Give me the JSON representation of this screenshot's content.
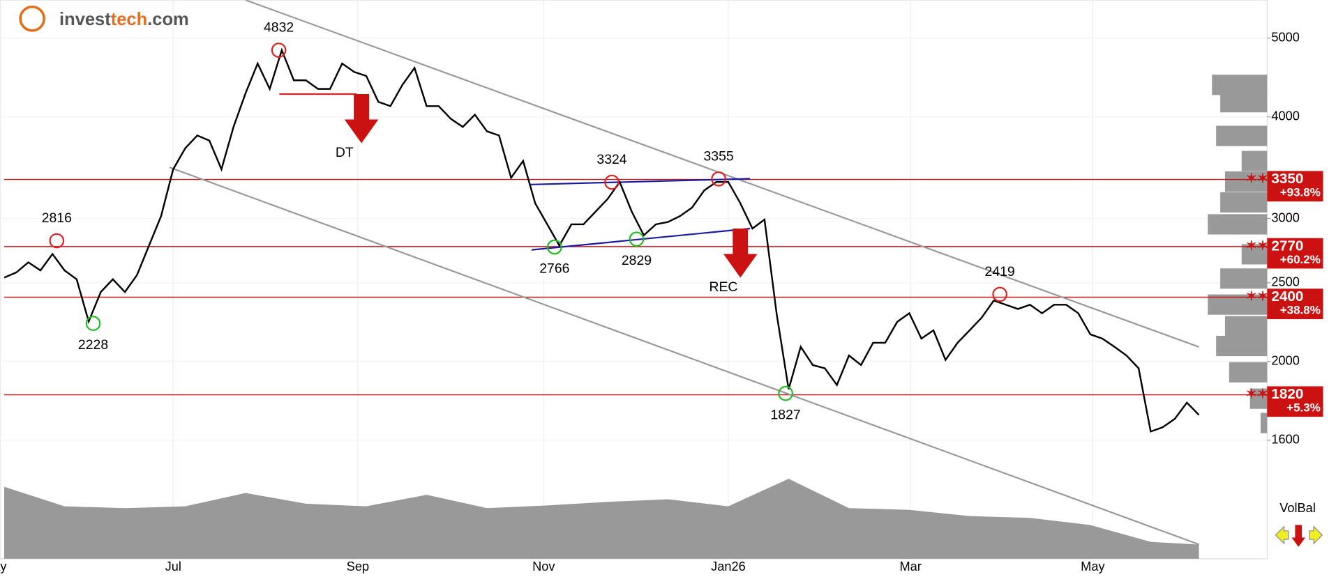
{
  "logo": [
    "invest",
    "tech",
    ".com"
  ],
  "chart_data": {
    "type": "line",
    "log_scale": true,
    "grid": true,
    "ylim": [
      1525,
      5570
    ],
    "yticks": [
      5000,
      4000,
      3000,
      2500,
      2000,
      1600
    ],
    "xlim": [
      -0.35,
      104.65
    ],
    "xticks": [
      {
        "value": -0.8,
        "label": "May"
      },
      {
        "value": 14,
        "label": "Jul"
      },
      {
        "value": 29.3,
        "label": "Sep"
      },
      {
        "value": 44.7,
        "label": "Nov"
      },
      {
        "value": 60,
        "label": "Jan26"
      },
      {
        "value": 75.1,
        "label": "Mar"
      },
      {
        "value": 90.2,
        "label": "May"
      }
    ],
    "series": [
      {
        "color": "#000000",
        "values": [
          2537,
          2574,
          2649,
          2589,
          2712,
          2589,
          2525,
          2240,
          2435,
          2525,
          2435,
          2555,
          2778,
          3020,
          3448,
          3660,
          3795,
          3740,
          3448,
          3888,
          4278,
          4653,
          4330,
          4832,
          4437,
          4437,
          4330,
          4330,
          4653,
          4543,
          4492,
          4174,
          4124,
          4381,
          4596,
          4124,
          4124,
          3979,
          3888,
          4025,
          3840,
          3795,
          3366,
          3531,
          3131,
          2950,
          2778,
          2950,
          2950,
          3058,
          3170,
          3326,
          3058,
          2860,
          2950,
          2970,
          3020,
          3094,
          3247,
          3326,
          3326,
          3131,
          2915,
          2990,
          2293,
          1849,
          2085,
          1980,
          1962,
          1871,
          2034,
          1980,
          2109,
          2109,
          2238,
          2293,
          2134,
          2185,
          2009,
          2109,
          2185,
          2265,
          2377,
          2349,
          2321,
          2349,
          2293,
          2349,
          2349,
          2293,
          2160,
          2134,
          2085,
          2034,
          1962,
          1640,
          1660,
          1700,
          1780,
          1719
        ]
      }
    ],
    "lines": [
      {
        "x": [
          20.0,
          99.0
        ],
        "values": [
          5570,
          2084
        ],
        "color": "#999999"
      },
      {
        "x": [
          13.7,
          99.0
        ],
        "values": [
          3467,
          1191
        ],
        "color": "#999999"
      },
      {
        "x": [
          43.5,
          61.8
        ],
        "values": [
          3302,
          3357
        ],
        "color": "#1a1aa0"
      },
      {
        "x": [
          43.7,
          61.8
        ],
        "values": [
          2744,
          2915
        ],
        "color": "#1a1aa0"
      },
      {
        "x": [
          22.8,
          29.2
        ],
        "values": [
          4267,
          4267
        ],
        "color": "#e02020"
      }
    ],
    "extremes": [
      {
        "x": 4.35,
        "value": 2816,
        "color": "#e02020"
      },
      {
        "x": 7.37,
        "value": 2228,
        "color": "#22bb22"
      },
      {
        "x": 22.75,
        "value": 4832,
        "color": "#e02020"
      },
      {
        "x": 50.35,
        "value": 3324,
        "color": "#e02020"
      },
      {
        "x": 59.2,
        "value": 3355,
        "color": "#e02020"
      },
      {
        "x": 45.6,
        "value": 2766,
        "color": "#22bb22"
      },
      {
        "x": 52.4,
        "value": 2829,
        "color": "#22bb22"
      },
      {
        "x": 64.75,
        "value": 1827,
        "color": "#22bb22"
      },
      {
        "x": 82.5,
        "value": 2419,
        "color": "#e02020"
      }
    ],
    "signals": [
      {
        "label": "DT",
        "x": 29.6,
        "value": 4267
      },
      {
        "label": "REC",
        "x": 61.0,
        "value": 2915
      }
    ],
    "levels": {
      "values": [
        3350,
        2770,
        2400,
        1820
      ],
      "changes": [
        93.8,
        60.2,
        38.8,
        5.3
      ],
      "change_labels": [
        "+93.8%",
        "+60.2%",
        "+38.8%",
        "+5.3%"
      ],
      "color": "#cc1111"
    },
    "volume": {
      "x": [
        0,
        5,
        10,
        15,
        20,
        25,
        30,
        35,
        40,
        45,
        50,
        55,
        60,
        65,
        70,
        75,
        80,
        85,
        90,
        95,
        99
      ],
      "values": [
        81,
        59,
        57,
        59,
        74,
        62,
        59,
        72,
        57,
        60,
        64,
        67,
        59,
        90,
        57,
        55,
        48,
        46,
        38,
        19,
        16
      ],
      "ylim": [
        0,
        100
      ],
      "color": "#999999"
    },
    "volume_profile": {
      "prices": [
        4380,
        4170,
        3790,
        3530,
        3330,
        3140,
        2950,
        2710,
        2530,
        2350,
        2210,
        2090,
        1940,
        1800,
        1680
      ],
      "values": [
        93,
        79,
        86,
        43,
        71,
        79,
        100,
        43,
        79,
        100,
        71,
        86,
        64,
        29,
        11
      ],
      "xlim": [
        0,
        100
      ],
      "color": "#999999"
    },
    "indicator_label": "VolBal"
  }
}
